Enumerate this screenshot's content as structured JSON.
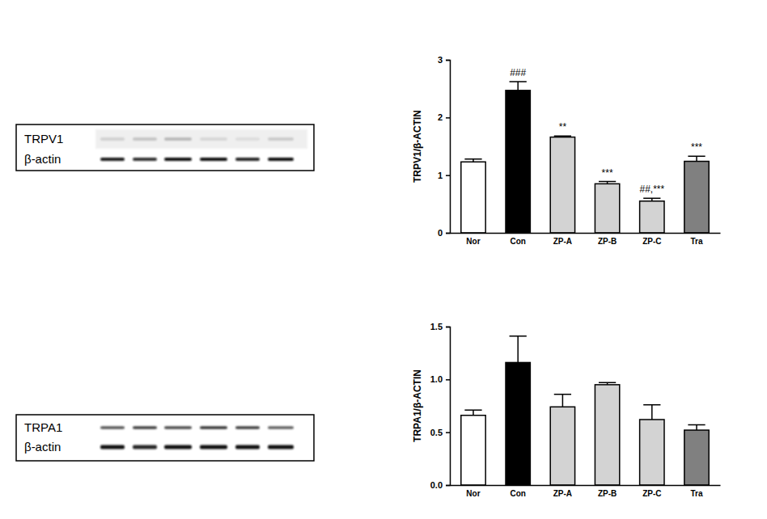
{
  "chart_data": [
    {
      "type": "bar",
      "y_label": "TRPV1/β-ACTIN",
      "categories": [
        "Nor",
        "Con",
        "ZP-A",
        "ZP-B",
        "ZP-C",
        "Tra"
      ],
      "values": [
        1.23,
        2.47,
        1.66,
        0.85,
        0.55,
        1.24
      ],
      "errors": [
        0.05,
        0.15,
        0.02,
        0.04,
        0.05,
        0.09
      ],
      "annotations": [
        null,
        "###",
        "**",
        "***",
        "##,***",
        "***"
      ],
      "colors": [
        "#ffffff",
        "#000000",
        "#d3d3d3",
        "#d3d3d3",
        "#d3d3d3",
        "#808080"
      ],
      "ylim": [
        0,
        3
      ],
      "yticks": [
        0,
        1,
        2,
        3
      ],
      "grid": false
    },
    {
      "type": "bar",
      "y_label": "TRPA1/β-ACTIN",
      "categories": [
        "Nor",
        "Con",
        "ZP-A",
        "ZP-B",
        "ZP-C",
        "Tra"
      ],
      "values": [
        0.66,
        1.16,
        0.74,
        0.95,
        0.62,
        0.52
      ],
      "errors": [
        0.05,
        0.25,
        0.12,
        0.02,
        0.14,
        0.05
      ],
      "colors": [
        "#ffffff",
        "#000000",
        "#d3d3d3",
        "#d3d3d3",
        "#d3d3d3",
        "#808080"
      ],
      "ylim": [
        0,
        1.5
      ],
      "yticks": [
        {
          "value": 0,
          "label": "0.0"
        },
        {
          "value": 0.5,
          "label": "0.5"
        },
        {
          "value": 1,
          "label": "1.0"
        },
        {
          "value": 1.5,
          "label": "1.5"
        }
      ],
      "grid": false
    }
  ],
  "blots": [
    {
      "labels": [
        "TRPV1",
        "β-actin"
      ]
    },
    {
      "labels": [
        "TRPA1",
        "β-actin"
      ]
    }
  ]
}
